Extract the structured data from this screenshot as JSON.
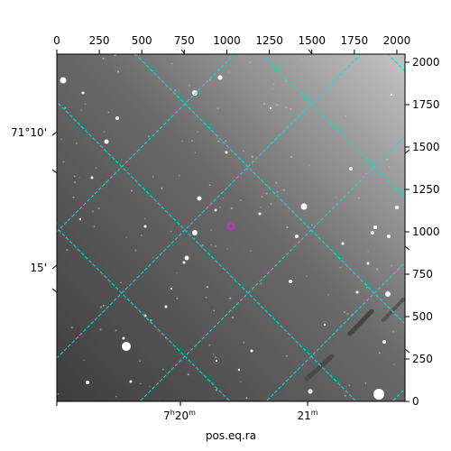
{
  "figure": {
    "xlabel": "pos.eq.ra",
    "top_axis_ticks": [
      "0",
      "250",
      "500",
      "750",
      "1000",
      "1250",
      "1500",
      "1750",
      "2000"
    ],
    "right_axis_ticks": [
      "0",
      "250",
      "500",
      "750",
      "1000",
      "1250",
      "1500",
      "1750",
      "2000"
    ],
    "ra_ticks": [
      {
        "hours": "7",
        "minutes": "20",
        "label_h_sup": "h",
        "label_m_sup": "m"
      },
      {
        "hours": "",
        "minutes": "21",
        "label_h_sup": "",
        "label_m_sup": "m"
      }
    ],
    "dec_ticks": [
      "71°10'",
      "15'"
    ],
    "grid_color": "#00e5e5",
    "marker_color": "#e020e0",
    "image_style": "grayscale star field"
  }
}
